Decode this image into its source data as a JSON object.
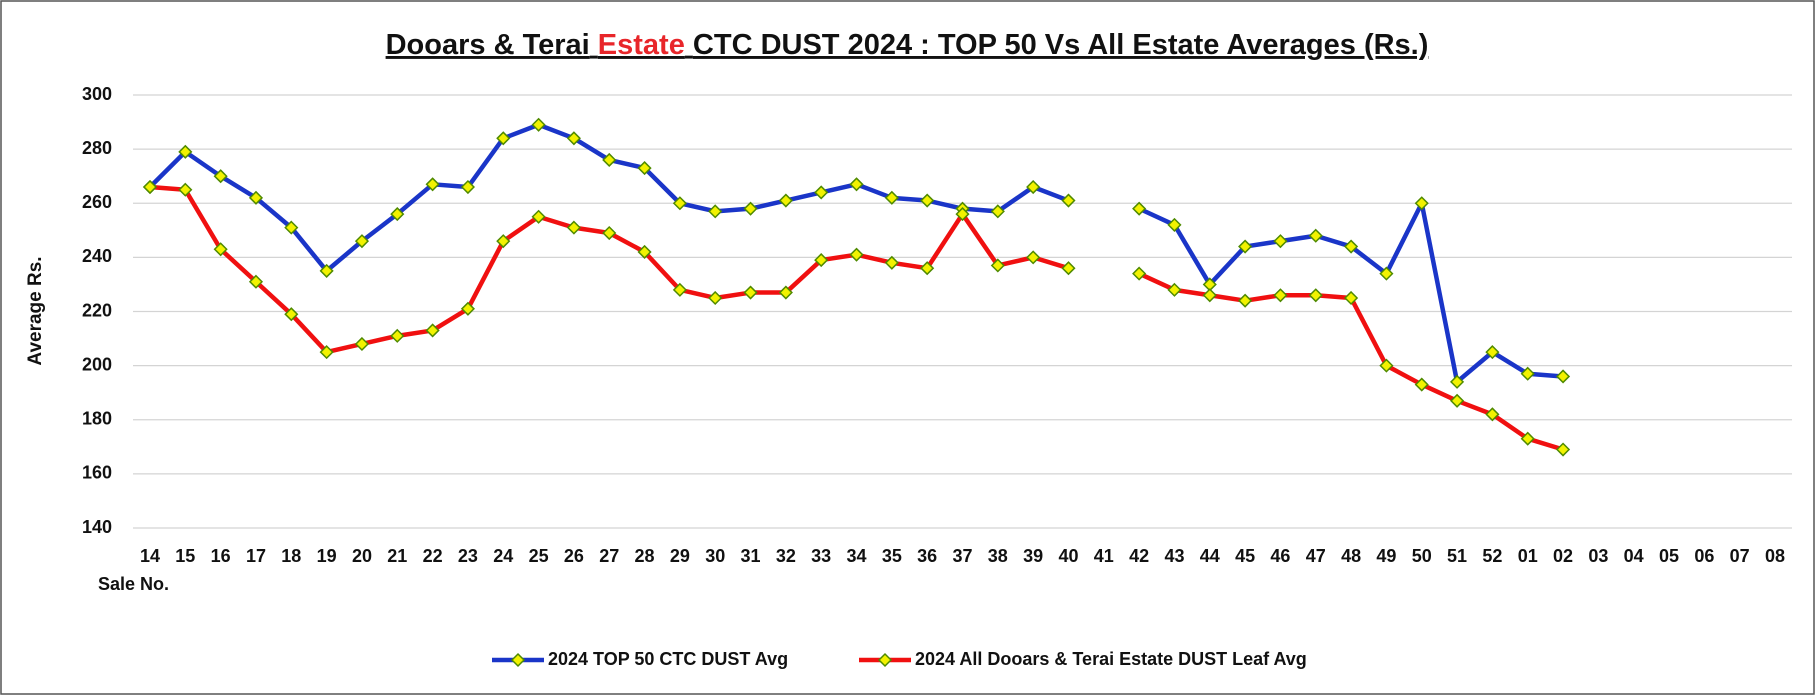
{
  "chart_data": {
    "type": "line",
    "title_parts": [
      "Dooars & Terai",
      "Estate",
      "CTC DUST 2024 : TOP 50 Vs All Estate Averages (Rs.)"
    ],
    "title_highlight_color": "#e8262a",
    "y_label": "Average Rs.",
    "x_label": "Sale No.",
    "categories": [
      "14",
      "15",
      "16",
      "17",
      "18",
      "19",
      "20",
      "21",
      "22",
      "23",
      "24",
      "25",
      "26",
      "27",
      "28",
      "29",
      "30",
      "31",
      "32",
      "33",
      "34",
      "35",
      "36",
      "37",
      "38",
      "39",
      "40",
      "41",
      "42",
      "43",
      "44",
      "45",
      "46",
      "47",
      "48",
      "49",
      "50",
      "51",
      "52",
      "01",
      "02",
      "03",
      "04",
      "05",
      "06",
      "07",
      "08"
    ],
    "series": [
      {
        "name": "2024 TOP 50 CTC DUST Avg",
        "color": "#1a35c8",
        "values": [
          266,
          279,
          270,
          262,
          251,
          235,
          246,
          256,
          267,
          266,
          284,
          289,
          284,
          276,
          273,
          260,
          257,
          258,
          261,
          264,
          267,
          262,
          261,
          258,
          257,
          266,
          261,
          null,
          258,
          252,
          230,
          244,
          246,
          248,
          244,
          234,
          260,
          194,
          205,
          197,
          196,
          null,
          null,
          null,
          null,
          null,
          null
        ]
      },
      {
        "name": "2024 All Dooars & Terai Estate DUST Leaf Avg",
        "color": "#f01010",
        "values": [
          266,
          265,
          243,
          231,
          219,
          205,
          208,
          211,
          213,
          221,
          246,
          255,
          251,
          249,
          242,
          228,
          225,
          227,
          227,
          239,
          241,
          238,
          236,
          256,
          237,
          240,
          236,
          null,
          234,
          228,
          226,
          224,
          226,
          226,
          225,
          200,
          193,
          187,
          182,
          173,
          169,
          null,
          null,
          null,
          null,
          null,
          null
        ]
      }
    ],
    "marker_fill": "#f2f200",
    "marker_stroke": "#4f8a00",
    "ylim": [
      140,
      300
    ],
    "yticks": [
      140,
      160,
      180,
      200,
      220,
      240,
      260,
      280,
      300
    ],
    "grid": true,
    "legend": "bottom"
  }
}
